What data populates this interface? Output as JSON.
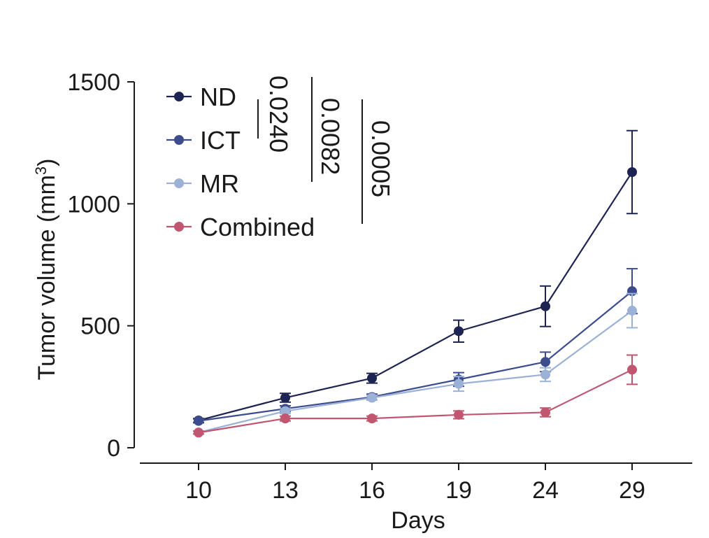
{
  "chart_data": {
    "type": "line",
    "title": "",
    "xlabel": "Days",
    "ylabel": "Tumor volume (mm",
    "ylabel_superscript": "3",
    "ylabel_close": ")",
    "categories": [
      "10",
      "13",
      "16",
      "19",
      "24",
      "29"
    ],
    "ylim": [
      0,
      1500
    ],
    "yticks": [
      0,
      500,
      1000,
      1500
    ],
    "ytick_labels": [
      "0",
      "500",
      "1000",
      "1500"
    ],
    "grid": false,
    "legend_position": "top-left",
    "series": [
      {
        "name": "ND",
        "color": "#1e2451",
        "values": [
          112,
          205,
          285,
          478,
          580,
          1130
        ],
        "errors": [
          8,
          18,
          20,
          45,
          83,
          170
        ]
      },
      {
        "name": "ICT",
        "color": "#3c4c8f",
        "values": [
          110,
          160,
          208,
          280,
          352,
          642
        ],
        "errors": [
          8,
          12,
          12,
          28,
          40,
          92
        ]
      },
      {
        "name": "MR",
        "color": "#9bb1d6",
        "values": [
          63,
          150,
          205,
          262,
          300,
          562
        ],
        "errors": [
          6,
          10,
          10,
          30,
          28,
          70
        ]
      },
      {
        "name": "Combined",
        "color": "#c0566f",
        "values": [
          62,
          120,
          120,
          135,
          145,
          320
        ],
        "errors": [
          6,
          10,
          10,
          16,
          18,
          60
        ]
      }
    ],
    "annotations": [
      {
        "text": "0.0240"
      },
      {
        "text": "0.0082"
      },
      {
        "text": "0.0005"
      }
    ]
  }
}
